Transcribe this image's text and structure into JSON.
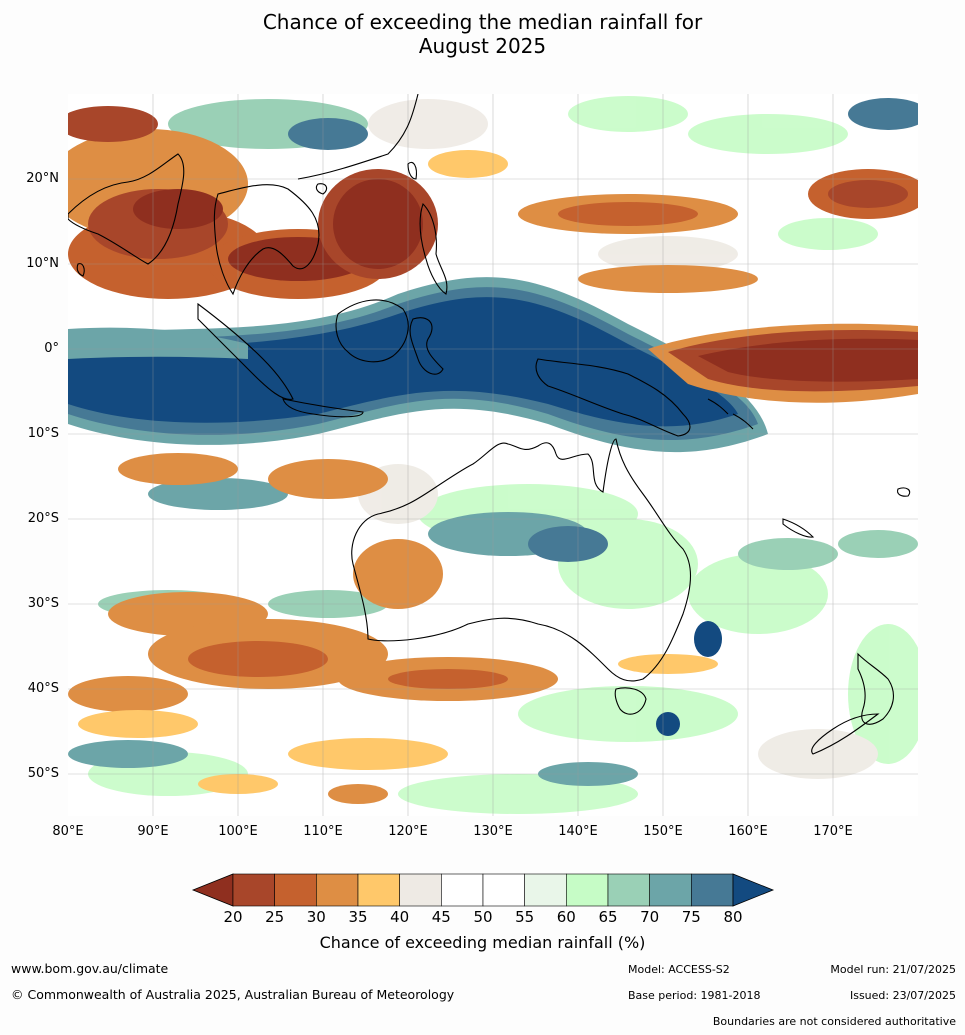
{
  "title": {
    "line1": "Chance of exceeding the median rainfall for",
    "line2": "August 2025"
  },
  "map": {
    "lat_labels": [
      "20°N",
      "10°N",
      "0°",
      "10°S",
      "20°S",
      "30°S",
      "40°S",
      "50°S"
    ],
    "lon_labels": [
      "80°E",
      "90°E",
      "100°E",
      "110°E",
      "120°E",
      "130°E",
      "140°E",
      "150°E",
      "160°E",
      "170°E"
    ],
    "extent": {
      "lon_min": 80,
      "lon_max": 180,
      "lat_min": -55,
      "lat_max": 30
    }
  },
  "colorbar": {
    "ticks": [
      "20",
      "25",
      "30",
      "35",
      "40",
      "45",
      "50",
      "55",
      "60",
      "65",
      "70",
      "75",
      "80"
    ],
    "colors": [
      "#8f2f1f",
      "#a8462a",
      "#c5612e",
      "#de8e44",
      "#ffc86a",
      "#eeeae4",
      "#ffffff",
      "#ffffff",
      "#e9f6e9",
      "#c6fcc6",
      "#9ad0b6",
      "#6ca5a8",
      "#467995",
      "#134a80"
    ],
    "label": "Chance of exceeding median rainfall (%)"
  },
  "footer": {
    "website": "www.bom.gov.au/climate",
    "copyright": "© Commonwealth of Australia 2025, Australian Bureau of Meteorology",
    "model": "Model: ACCESS-S2",
    "model_run": "Model run: 21/07/2025",
    "base_period": "Base period: 1981-2018",
    "issued": "Issued: 23/07/2025",
    "disclaimer": "Boundaries are not considered authoritative"
  }
}
